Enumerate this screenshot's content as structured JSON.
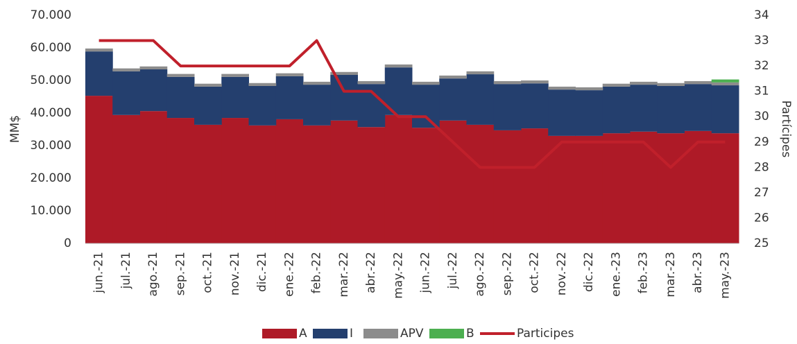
{
  "chart_data": {
    "type": "bar",
    "categories": [
      "jun.-21",
      "jul.-21",
      "ago.-21",
      "sep.-21",
      "oct.-21",
      "nov.-21",
      "dic.-21",
      "ene.-22",
      "feb.-22",
      "mar.-22",
      "abr.-22",
      "may.-22",
      "jun.-22",
      "jul.-22",
      "ago.-22",
      "sep.-22",
      "oct.-22",
      "nov.-22",
      "dic.-22",
      "ene.-23",
      "feb.-23",
      "mar.-23",
      "abr.-23",
      "may.-23"
    ],
    "series": [
      {
        "name": "A",
        "type": "bar",
        "color": "#ae1a27",
        "values": [
          45300,
          39400,
          40600,
          38500,
          36400,
          38500,
          36200,
          38100,
          36200,
          37700,
          35700,
          39400,
          35500,
          37700,
          36400,
          34700,
          35300,
          33000,
          33000,
          33800,
          34300,
          33800,
          34500,
          33800
        ]
      },
      {
        "name": "I",
        "type": "bar",
        "color": "#243f6e",
        "values": [
          13600,
          13400,
          12800,
          12600,
          11700,
          12600,
          12100,
          13200,
          12500,
          14000,
          13200,
          14600,
          13200,
          12900,
          15500,
          14200,
          13800,
          14200,
          14000,
          14300,
          14400,
          14500,
          14400,
          14700
        ]
      },
      {
        "name": "APV",
        "type": "bar",
        "color": "#8c8c8c",
        "values": [
          900,
          900,
          900,
          900,
          900,
          900,
          900,
          900,
          900,
          900,
          900,
          900,
          900,
          900,
          900,
          900,
          900,
          900,
          900,
          900,
          900,
          900,
          900,
          900
        ]
      },
      {
        "name": "B",
        "type": "bar",
        "color": "#4caf50",
        "values": [
          0,
          0,
          0,
          0,
          0,
          0,
          0,
          0,
          0,
          0,
          0,
          0,
          0,
          0,
          0,
          0,
          0,
          0,
          0,
          0,
          0,
          0,
          0,
          900
        ]
      },
      {
        "name": "Participes",
        "type": "line",
        "axis": "y2",
        "color": "#c0202b",
        "values": [
          33,
          33,
          33,
          32,
          32,
          32,
          32,
          32,
          33,
          31,
          31,
          30,
          30,
          29,
          28,
          28,
          28,
          29,
          29,
          29,
          29,
          28,
          29,
          29
        ]
      }
    ],
    "y_label": "MM$",
    "y2_label": "Partícipes",
    "ylim": [
      0,
      70000
    ],
    "yticks": [
      0,
      {
        "value": 10000,
        "label": "10.000"
      },
      {
        "value": 20000,
        "label": "20.000"
      },
      {
        "value": 30000,
        "label": "30.000"
      },
      {
        "value": 40000,
        "label": "40.000"
      },
      {
        "value": 50000,
        "label": "50.000"
      },
      {
        "value": 60000,
        "label": "60.000"
      },
      {
        "value": 70000,
        "label": "70.000"
      }
    ],
    "y2lim": [
      25,
      34
    ],
    "y2ticks": [
      25,
      26,
      27,
      28,
      29,
      30,
      31,
      32,
      33,
      34
    ],
    "legend": "bottom"
  }
}
